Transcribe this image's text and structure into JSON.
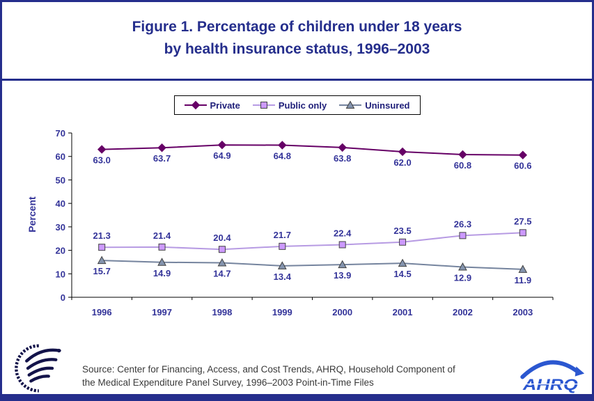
{
  "page": {
    "title_line1": "Figure 1. Percentage of children under 18 years",
    "title_line2": "by health insurance status, 1996–2003",
    "source_line1": "Source: Center for Financing, Access, and Cost Trends, AHRQ, Household Component of",
    "source_line2": "the Medical Expenditure Panel Survey, 1996–2003 Point-in-Time Files"
  },
  "colors": {
    "navy": "#252E8C",
    "label_blue": "#333399",
    "source_text": "#3A3A3A",
    "hhs_ink": "#13134A",
    "ahrq_blue": "#2B57D0"
  },
  "logos": {
    "hhs": "hhs-eagle-seal",
    "ahrq_text": "AHRQ"
  },
  "chart_data": {
    "type": "line",
    "title": "Figure 1. Percentage of children under 18 years by health insurance status, 1996–2003",
    "categories": [
      "1996",
      "1997",
      "1998",
      "1999",
      "2000",
      "2001",
      "2002",
      "2003"
    ],
    "series": [
      {
        "name": "Private",
        "marker": "diamond",
        "color": "#660066",
        "marker_fill": "#660066",
        "marker_stroke": "#660066",
        "label_position": "below",
        "values": [
          63.0,
          63.7,
          64.9,
          64.8,
          63.8,
          62.0,
          60.8,
          60.6
        ]
      },
      {
        "name": "Public only",
        "marker": "square",
        "color": "#B79BE3",
        "marker_fill": "#CC99FF",
        "marker_stroke": "#444444",
        "label_position": "above",
        "values": [
          21.3,
          21.4,
          20.4,
          21.7,
          22.4,
          23.5,
          26.3,
          27.5
        ]
      },
      {
        "name": "Uninsured",
        "marker": "triangle",
        "color": "#75849E",
        "marker_fill": "#8494AE",
        "marker_stroke": "#404040",
        "label_position": "below",
        "values": [
          15.7,
          14.9,
          14.7,
          13.4,
          13.9,
          14.5,
          12.9,
          11.9
        ]
      }
    ],
    "xlabel": "",
    "ylabel": "Percent",
    "ylim": [
      0,
      70
    ],
    "ytick_step": 10,
    "grid": false,
    "legend_position": "top"
  }
}
